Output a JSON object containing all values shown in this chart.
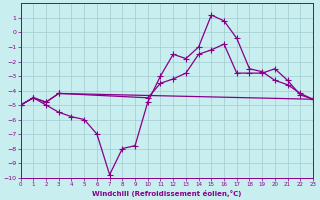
{
  "xlabel": "Windchill (Refroidissement éolien,°C)",
  "bg_color": "#c8eef0",
  "grid_color": "#a0ccd0",
  "line_color": "#880088",
  "xlim": [
    0,
    23
  ],
  "ylim": [
    -10,
    2
  ],
  "xticks": [
    0,
    1,
    2,
    3,
    4,
    5,
    6,
    7,
    8,
    9,
    10,
    11,
    12,
    13,
    14,
    15,
    16,
    17,
    18,
    19,
    20,
    21,
    22,
    23
  ],
  "yticks": [
    1,
    0,
    -1,
    -2,
    -3,
    -4,
    -5,
    -6,
    -7,
    -8,
    -9,
    -10
  ],
  "line1_x": [
    0,
    1,
    2,
    3,
    23
  ],
  "line1_y": [
    -5.0,
    -4.5,
    -4.8,
    -4.2,
    -4.6
  ],
  "line2_x": [
    0,
    1,
    2,
    3,
    4,
    5,
    6,
    7,
    8,
    9,
    10,
    11,
    12,
    13,
    14,
    15,
    16,
    17,
    18,
    19,
    20,
    21,
    22,
    23
  ],
  "line2_y": [
    -5.0,
    -4.5,
    -5.0,
    -5.5,
    -5.8,
    -6.0,
    -7.0,
    -9.8,
    -8.0,
    -7.8,
    -4.8,
    -3.0,
    -1.5,
    -1.8,
    -1.0,
    1.2,
    0.8,
    -0.4,
    -2.5,
    -2.7,
    -3.3,
    -3.6,
    -4.2,
    -4.6
  ],
  "line3_x": [
    0,
    1,
    2,
    3,
    10,
    11,
    12,
    13,
    14,
    15,
    16,
    17,
    18,
    19,
    20,
    21,
    22,
    23
  ],
  "line3_y": [
    -5.0,
    -4.5,
    -4.8,
    -4.2,
    -4.5,
    -3.5,
    -3.2,
    -2.8,
    -1.5,
    -1.2,
    -0.8,
    -2.8,
    -2.8,
    -2.8,
    -2.5,
    -3.3,
    -4.3,
    -4.6
  ]
}
